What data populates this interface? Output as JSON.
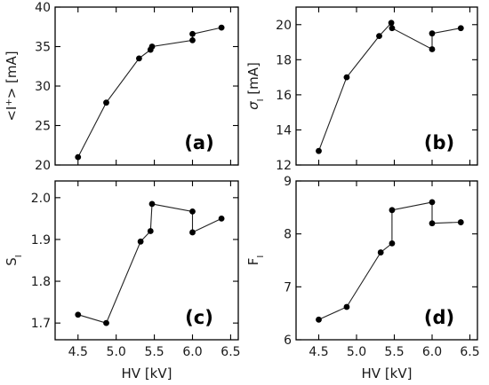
{
  "chart_data": [
    {
      "type": "line",
      "panel_label": "(a)",
      "ylabel": "<I+> [mA]",
      "xlabel": "",
      "xlim": [
        4.2,
        6.6
      ],
      "ylim": [
        20,
        40
      ],
      "xticks": [
        4.5,
        5.0,
        5.5,
        6.0,
        6.5
      ],
      "xtick_labels_shown": false,
      "yticks": [
        20,
        25,
        30,
        35,
        40
      ],
      "ytick_labels": [
        "20",
        "25",
        "30",
        "35",
        "40"
      ],
      "x": [
        4.5,
        4.87,
        5.3,
        5.45,
        5.47,
        6.0,
        6.0,
        6.38
      ],
      "y": [
        21.0,
        27.9,
        33.5,
        34.6,
        35.0,
        35.8,
        36.6,
        37.4
      ]
    },
    {
      "type": "line",
      "panel_label": "(b)",
      "ylabel": "σI [mA]",
      "xlabel": "",
      "xlim": [
        4.2,
        6.6
      ],
      "ylim": [
        12,
        21
      ],
      "xticks": [
        4.5,
        5.0,
        5.5,
        6.0,
        6.5
      ],
      "xtick_labels_shown": false,
      "yticks": [
        12,
        14,
        16,
        18,
        20
      ],
      "ytick_labels": [
        "12",
        "14",
        "16",
        "18",
        "20"
      ],
      "x": [
        4.5,
        4.87,
        5.3,
        5.46,
        5.47,
        6.0,
        6.0,
        6.38
      ],
      "y": [
        12.8,
        17.0,
        19.35,
        20.1,
        19.8,
        18.6,
        19.5,
        19.8
      ]
    },
    {
      "type": "line",
      "panel_label": "(c)",
      "ylabel": "SI",
      "xlabel": "HV [kV]",
      "xlim": [
        4.2,
        6.6
      ],
      "ylim": [
        1.66,
        2.04
      ],
      "xticks": [
        4.5,
        5.0,
        5.5,
        6.0,
        6.5
      ],
      "xtick_labels": [
        "4.5",
        "5.0",
        "5.5",
        "6.0",
        "6.5"
      ],
      "xtick_labels_shown": true,
      "yticks": [
        1.7,
        1.8,
        1.9,
        2.0
      ],
      "ytick_labels": [
        "1.7",
        "1.8",
        "1.9",
        "2.0"
      ],
      "x": [
        4.5,
        4.87,
        5.32,
        5.45,
        5.47,
        6.0,
        6.0,
        6.38
      ],
      "y": [
        1.72,
        1.7,
        1.895,
        1.92,
        1.985,
        1.967,
        1.917,
        1.95
      ]
    },
    {
      "type": "line",
      "panel_label": "(d)",
      "ylabel": "FI",
      "xlabel": "HV [kV]",
      "xlim": [
        4.2,
        6.6
      ],
      "ylim": [
        6,
        9
      ],
      "xticks": [
        4.5,
        5.0,
        5.5,
        6.0,
        6.5
      ],
      "xtick_labels": [
        "4.5",
        "5.0",
        "5.5",
        "6.0",
        "6.5"
      ],
      "xtick_labels_shown": true,
      "yticks": [
        6,
        7,
        8,
        9
      ],
      "ytick_labels": [
        "6",
        "7",
        "8",
        "9"
      ],
      "x": [
        4.5,
        4.87,
        5.32,
        5.47,
        5.47,
        6.0,
        6.0,
        6.38
      ],
      "y": [
        6.38,
        6.62,
        7.65,
        7.82,
        8.45,
        8.6,
        8.2,
        8.22
      ]
    }
  ],
  "style": {
    "line_color": "#222222",
    "marker_color": "#000000",
    "background": "#ffffff"
  }
}
